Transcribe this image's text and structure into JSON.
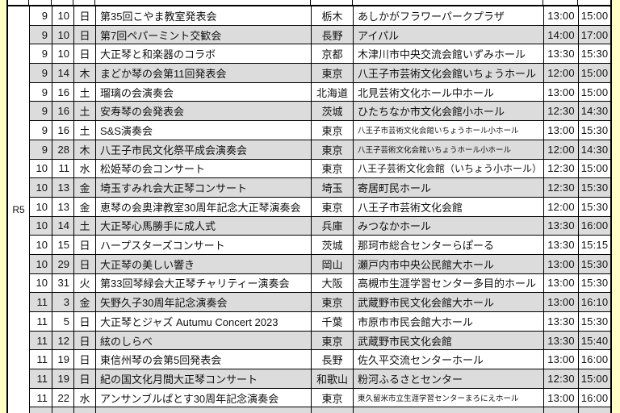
{
  "era_label": "R5",
  "colors": {
    "page_margin": "#FFFFC6",
    "row_default": "#FFFFFF",
    "row_alternate": "#DCDCDC",
    "grid_border": "#000000",
    "text": "#111111"
  },
  "table": {
    "columns_semantic": [
      "month",
      "day",
      "weekday",
      "event",
      "prefecture",
      "venue",
      "start_time",
      "end_time"
    ],
    "rows": [
      {
        "month": "9",
        "day": "10",
        "weekday": "日",
        "event": "第35回こやま教室発表会",
        "pref": "栃木",
        "venue": "あしかがフラワーパークプラザ",
        "start": "13:00",
        "end": "15:00"
      },
      {
        "month": "9",
        "day": "10",
        "weekday": "日",
        "event": "第7回ペパーミント交歓会",
        "pref": "長野",
        "venue": "アイパル",
        "start": "14:00",
        "end": "17:00"
      },
      {
        "month": "9",
        "day": "10",
        "weekday": "日",
        "event": "大正琴と和楽器のコラボ",
        "pref": "京都",
        "venue": "木津川市中央交流会館いずみホール",
        "start": "13:30",
        "end": "15:30"
      },
      {
        "month": "9",
        "day": "14",
        "weekday": "木",
        "event": "まどか琴の会第11回発表会",
        "pref": "東京",
        "venue": "八王子市芸術文化会館いちょうホール",
        "start": "12:00",
        "end": "15:00"
      },
      {
        "month": "9",
        "day": "16",
        "weekday": "土",
        "event": "瑠璃の会演奏会",
        "pref": "北海道",
        "venue": "北見芸術文化ホール中ホール",
        "start": "13:00",
        "end": "15:00"
      },
      {
        "month": "9",
        "day": "16",
        "weekday": "土",
        "event": "安寿琴の会発表会",
        "pref": "茨城",
        "venue": "ひたちなか市文化会館小ホール",
        "start": "12:30",
        "end": "14:30"
      },
      {
        "month": "9",
        "day": "16",
        "weekday": "土",
        "event": "S&S演奏会",
        "pref": "東京",
        "venue": "八王子市芸術文化会館いちょうホール小ホール",
        "start": "13:00",
        "end": "15:30"
      },
      {
        "month": "9",
        "day": "28",
        "weekday": "木",
        "event": "八王子市民文化祭平成会演奏会",
        "pref": "東京",
        "venue": "八王子芸術文化会館いちょうホール小ホール",
        "start": "12:00",
        "end": "14:30"
      },
      {
        "month": "10",
        "day": "11",
        "weekday": "水",
        "event": "松姫琴の会コンサート",
        "pref": "東京",
        "venue": "八王子芸術文化会館（いちょう小ホール）",
        "start": "12:30",
        "end": "15:00"
      },
      {
        "month": "10",
        "day": "13",
        "weekday": "金",
        "event": "埼玉すみれ会大正琴コンサート",
        "pref": "埼玉",
        "venue": "寄居町民ホール",
        "start": "12:30",
        "end": "15:30"
      },
      {
        "month": "10",
        "day": "13",
        "weekday": "金",
        "event": "恵琴の会奥津教室30周年記念大正琴演奏会",
        "pref": "東京",
        "venue": "八王子市芸術文化会館",
        "start": "12:00",
        "end": "15:30"
      },
      {
        "month": "10",
        "day": "14",
        "weekday": "土",
        "event": "大正琴心馬勝手に成人式",
        "pref": "兵庫",
        "venue": "みつなかホール",
        "start": "13:30",
        "end": "16:00"
      },
      {
        "month": "10",
        "day": "15",
        "weekday": "日",
        "event": "ハープスターズコンサート",
        "pref": "茨城",
        "venue": "那珂市総合センターらぽーる",
        "start": "13:30",
        "end": "15:15"
      },
      {
        "month": "10",
        "day": "29",
        "weekday": "日",
        "event": "大正琴の美しい響き",
        "pref": "岡山",
        "venue": "瀬戸内市中央公民館大ホール",
        "start": "13:00",
        "end": "15:30"
      },
      {
        "month": "10",
        "day": "31",
        "weekday": "火",
        "event": "第33回琴緑会大正琴チャリティー演奏会",
        "pref": "大阪",
        "venue": "高槻市生涯学習センター多目的ホール",
        "start": "13:00",
        "end": "15:30"
      },
      {
        "month": "11",
        "day": "3",
        "weekday": "金",
        "event": "矢野久子30周年記念演奏会",
        "pref": "東京",
        "venue": "武蔵野市民文化会館大ホール",
        "start": "13:00",
        "end": "16:10"
      },
      {
        "month": "11",
        "day": "5",
        "weekday": "日",
        "event": "大正琴とジャズ Autumu Concert 2023",
        "pref": "千葉",
        "venue": "市原市市民会館大ホール",
        "start": "13:30",
        "end": "15:30"
      },
      {
        "month": "11",
        "day": "12",
        "weekday": "日",
        "event": "絃のしらべ",
        "pref": "東京",
        "venue": "武蔵野市民文化会館",
        "start": "13:30",
        "end": "15:40"
      },
      {
        "month": "11",
        "day": "19",
        "weekday": "日",
        "event": "東信州琴の会第5回発表会",
        "pref": "長野",
        "venue": "佐久平交流センターホール",
        "start": "13:00",
        "end": "16:00"
      },
      {
        "month": "11",
        "day": "19",
        "weekday": "日",
        "event": "紀の国文化月間大正琴コンサート",
        "pref": "和歌山",
        "venue": "粉河ふるさとセンター",
        "start": "12:30",
        "end": "15:00"
      },
      {
        "month": "11",
        "day": "22",
        "weekday": "水",
        "event": "アンサンブルぱとす30周年記念演奏会",
        "pref": "東京",
        "venue": "東久留米市立生涯学習センターまろにえホール",
        "start": "13:00",
        "end": "16:00"
      }
    ]
  }
}
